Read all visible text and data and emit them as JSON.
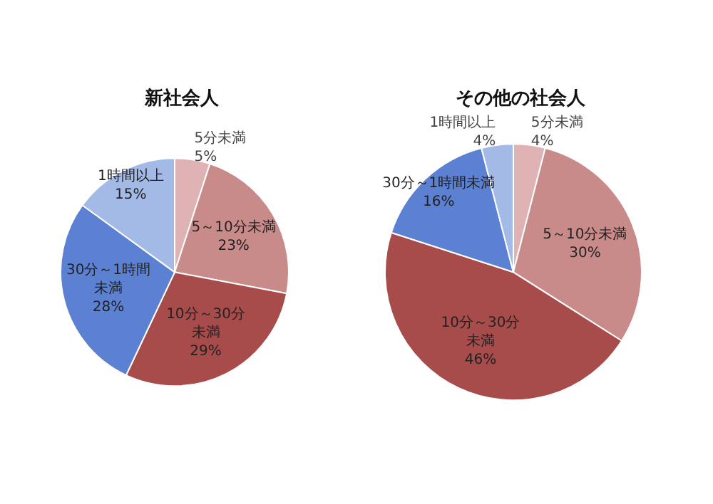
{
  "chart_data": [
    {
      "type": "pie",
      "title": "新社会人",
      "categories": [
        "5分未満",
        "5～10分未満",
        "10分～30分未満",
        "30分～1時間未満",
        "1時間以上"
      ],
      "values": [
        5,
        23,
        29,
        28,
        15
      ],
      "value_labels": [
        "5%",
        "23%",
        "29%",
        "28%",
        "15%"
      ],
      "colors": [
        "#dfb3b3",
        "#c98a8a",
        "#a84b4b",
        "#5c80d2",
        "#a3b9e6"
      ]
    },
    {
      "type": "pie",
      "title": "その他の社会人",
      "categories": [
        "5分未満",
        "5～10分未満",
        "10分～30分未満",
        "30分～1時間未満",
        "1時間以上"
      ],
      "values": [
        4,
        30,
        46,
        16,
        4
      ],
      "value_labels": [
        "4%",
        "30%",
        "46%",
        "16%",
        "4%"
      ],
      "colors": [
        "#dfb3b3",
        "#c98a8a",
        "#a84b4b",
        "#5c80d2",
        "#a3b9e6"
      ]
    }
  ]
}
